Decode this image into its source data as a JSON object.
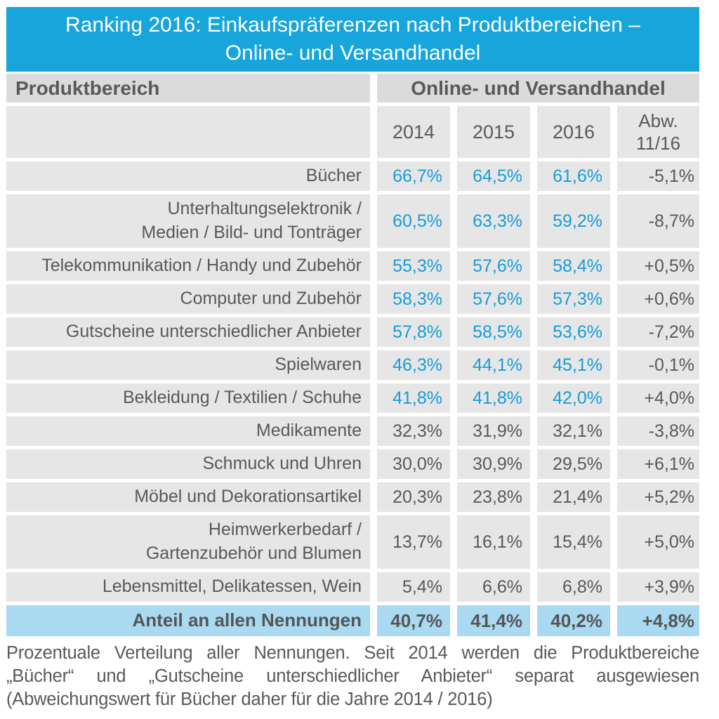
{
  "title": {
    "line1": "Ranking 2016: Einkaufspräferenzen nach Produktbereichen –",
    "line2": "Online- und Versandhandel"
  },
  "table": {
    "header_left": "Produktbereich",
    "header_right": "Online- und Versandhandel",
    "subheaders": [
      "2014",
      "2015",
      "2016"
    ],
    "abw_lines": [
      "Abw.",
      "11/16"
    ]
  },
  "chart_data": {
    "type": "table",
    "title": "Ranking 2016: Einkaufspräferenzen nach Produktbereichen – Online- und Versandhandel",
    "columns": [
      "Produktbereich",
      "2014",
      "2015",
      "2016",
      "Abw. 11/16"
    ],
    "rows": [
      {
        "label_lines": [
          "Bücher"
        ],
        "values": [
          "66,7%",
          "64,5%",
          "61,6%",
          "-5,1%"
        ],
        "blue_values": true
      },
      {
        "label_lines": [
          "Unterhaltungselektronik /",
          "Medien / Bild- und Tonträger"
        ],
        "values": [
          "60,5%",
          "63,3%",
          "59,2%",
          "-8,7%"
        ],
        "blue_values": true
      },
      {
        "label_lines": [
          "Telekommunikation / Handy und Zubehör"
        ],
        "values": [
          "55,3%",
          "57,6%",
          "58,4%",
          "+0,5%"
        ],
        "blue_values": true
      },
      {
        "label_lines": [
          "Computer und Zubehör"
        ],
        "values": [
          "58,3%",
          "57,6%",
          "57,3%",
          "+0,6%"
        ],
        "blue_values": true
      },
      {
        "label_lines": [
          "Gutscheine unterschiedlicher Anbieter"
        ],
        "values": [
          "57,8%",
          "58,5%",
          "53,6%",
          "-7,2%"
        ],
        "blue_values": true
      },
      {
        "label_lines": [
          "Spielwaren"
        ],
        "values": [
          "46,3%",
          "44,1%",
          "45,1%",
          "-0,1%"
        ],
        "blue_values": true
      },
      {
        "label_lines": [
          "Bekleidung / Textilien / Schuhe"
        ],
        "values": [
          "41,8%",
          "41,8%",
          "42,0%",
          "+4,0%"
        ],
        "blue_values": true
      },
      {
        "label_lines": [
          "Medikamente"
        ],
        "values": [
          "32,3%",
          "31,9%",
          "32,1%",
          "-3,8%"
        ],
        "blue_values": false
      },
      {
        "label_lines": [
          "Schmuck und Uhren"
        ],
        "values": [
          "30,0%",
          "30,9%",
          "29,5%",
          "+6,1%"
        ],
        "blue_values": false
      },
      {
        "label_lines": [
          "Möbel und Dekorationsartikel"
        ],
        "values": [
          "20,3%",
          "23,8%",
          "21,4%",
          "+5,2%"
        ],
        "blue_values": false
      },
      {
        "label_lines": [
          "Heimwerkerbedarf /",
          "Gartenzubehör und Blumen"
        ],
        "values": [
          "13,7%",
          "16,1%",
          "15,4%",
          "+5,0%"
        ],
        "blue_values": false
      },
      {
        "label_lines": [
          "Lebensmittel, Delikatessen, Wein"
        ],
        "values": [
          "5,4%",
          "6,6%",
          "6,8%",
          "+3,9%"
        ],
        "blue_values": false
      }
    ],
    "total": {
      "label": "Anteil an allen Nennungen",
      "values": [
        "40,7%",
        "41,4%",
        "40,2%",
        "+4,8%"
      ]
    }
  },
  "footer": {
    "line1": "Prozentuale Verteilung aller Nennungen. Seit 2014 werden die Produktbereiche",
    "line2": "„Bücher“ und „Gutscheine unterschiedlicher Anbieter“ separat ausgewiesen",
    "line3": "(Abweichungswert für Bücher daher für die Jahre 2014 / 2016)"
  },
  "colors": {
    "banner_blue": "#18A5DC",
    "value_blue": "#189CD9",
    "total_row_bg": "#A9DAF1",
    "header_gray": "#DBDBDB",
    "row_gray": "#E6E6E6",
    "text_gray": "#595959"
  }
}
